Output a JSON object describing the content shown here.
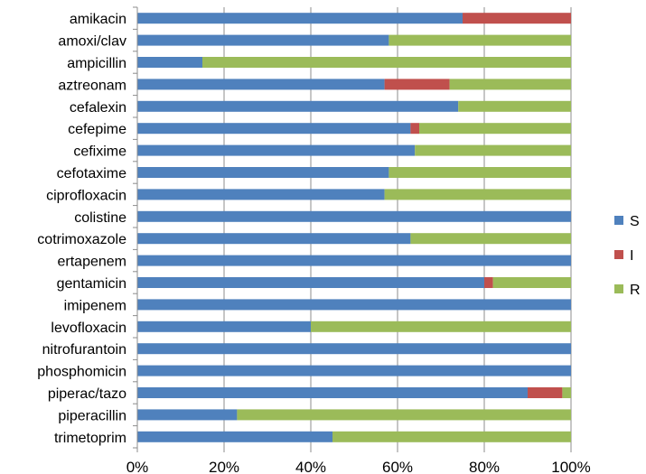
{
  "chart_data": {
    "type": "bar",
    "orientation": "horizontal",
    "stacked": "percent",
    "categories": [
      "amikacin",
      "amoxi/clav",
      "ampicillin",
      "aztreonam",
      "cefalexin",
      "cefepime",
      "cefixime",
      "cefotaxime",
      "ciprofloxacin",
      "colistine",
      "cotrimoxazole",
      "ertapenem",
      "gentamicin",
      "imipenem",
      "levofloxacin",
      "nitrofurantoin",
      "phosphomicin",
      "piperac/tazo",
      "piperacillin",
      "trimetoprim"
    ],
    "series": [
      {
        "name": "S",
        "color": "#4f81bd",
        "values": [
          75,
          58,
          15,
          57,
          74,
          63,
          64,
          58,
          57,
          100,
          63,
          100,
          80,
          100,
          40,
          100,
          100,
          90,
          23,
          45
        ]
      },
      {
        "name": "I",
        "color": "#c0504d",
        "values": [
          25,
          0,
          0,
          15,
          0,
          2,
          0,
          0,
          0,
          0,
          0,
          0,
          2,
          0,
          0,
          0,
          0,
          8,
          0,
          0
        ]
      },
      {
        "name": "R",
        "color": "#9bbb59",
        "values": [
          0,
          42,
          85,
          28,
          26,
          35,
          36,
          42,
          43,
          0,
          37,
          0,
          18,
          0,
          60,
          0,
          0,
          2,
          77,
          55
        ]
      }
    ],
    "x_tick_labels": [
      "0%",
      "20%",
      "40%",
      "60%",
      "80%",
      "100%"
    ],
    "xlim": [
      0,
      100
    ],
    "grid": "vertical",
    "legend_position": "right"
  }
}
